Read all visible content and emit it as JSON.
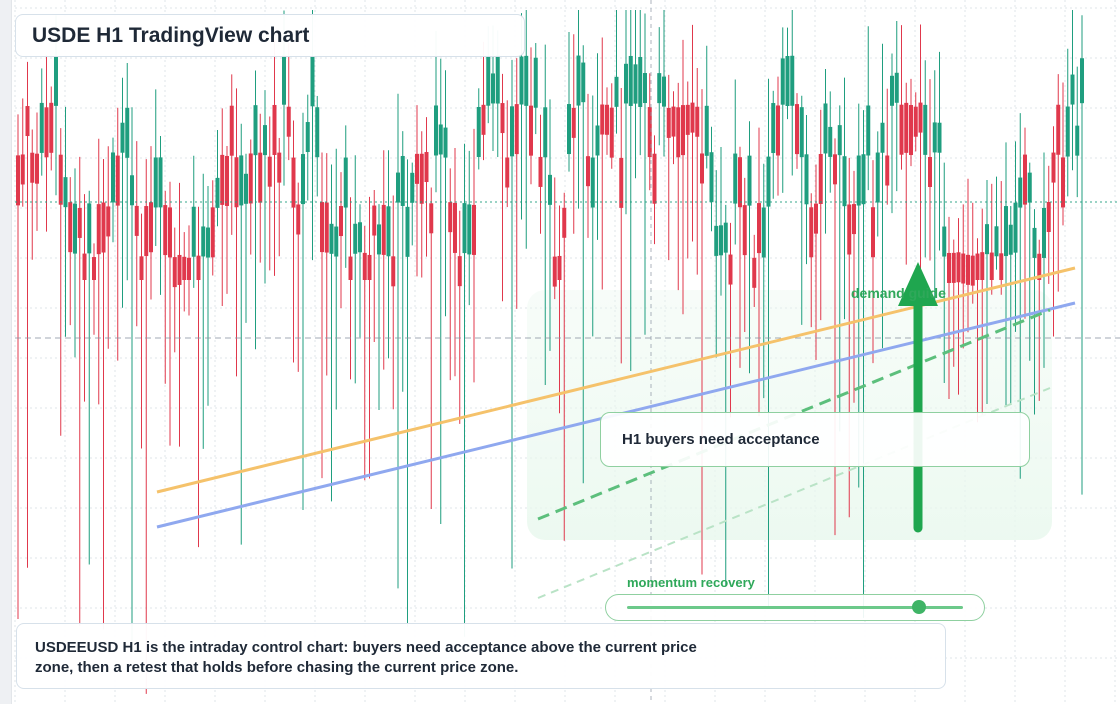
{
  "title": "USDE H1 TradingView chart",
  "acceptance_label": "H1 buyers need acceptance",
  "demand_label": "demand guide",
  "momentum": {
    "label": "momentum recovery",
    "level": 0.87
  },
  "note": "USDEEUSD H1 is the intraday control chart: buyers need acceptance above the current price zone, then a retest that holds before chasing the current price zone.",
  "colors": {
    "up_candle": "#1f9e7f",
    "down_candle": "#e0384c",
    "resistance_line": "#f5c26b",
    "support_line": "#8fa8ef",
    "demand_green": "#1fa64f",
    "grid": "#dfe4ea"
  },
  "chart_data": {
    "type": "candlestick",
    "timeframe": "H1",
    "grid": true,
    "current_price_marker": "dotted-horizontal",
    "trendlines": [
      "resistance-rising",
      "support-rising",
      "demand-dashed"
    ],
    "arrow": "up"
  }
}
